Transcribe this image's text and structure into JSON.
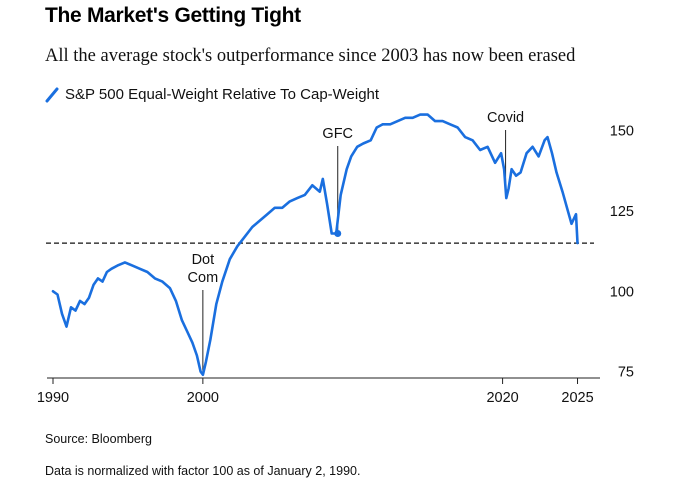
{
  "chart_data": {
    "type": "line",
    "title": "The Market's Getting Tight",
    "subtitle": "All the average stock's outperformance since 2003 has now been erased",
    "series": [
      {
        "name": "S&P 500 Equal-Weight Relative To Cap-Weight",
        "color": "#1a6fdf",
        "x": [
          1990.0,
          1990.3,
          1990.6,
          1990.9,
          1991.2,
          1991.5,
          1991.8,
          1992.1,
          1992.4,
          1992.7,
          1993.0,
          1993.3,
          1993.6,
          1993.9,
          1994.3,
          1994.8,
          1995.3,
          1995.8,
          1996.3,
          1996.8,
          1997.3,
          1997.8,
          1998.2,
          1998.6,
          1999.0,
          1999.3,
          1999.6,
          1999.85,
          2000.0,
          2000.2,
          2000.5,
          2000.9,
          2001.3,
          2001.8,
          2002.3,
          2002.8,
          2003.3,
          2003.8,
          2004.3,
          2004.8,
          2005.3,
          2005.8,
          2006.3,
          2006.8,
          2007.3,
          2007.8,
          2008.0,
          2008.3,
          2008.6,
          2008.9,
          2009.2,
          2009.6,
          2009.9,
          2010.3,
          2010.7,
          2011.2,
          2011.6,
          2012.0,
          2012.5,
          2013.0,
          2013.5,
          2014.0,
          2014.5,
          2015.0,
          2015.5,
          2016.0,
          2016.5,
          2017.0,
          2017.5,
          2018.0,
          2018.5,
          2019.0,
          2019.5,
          2019.9,
          2020.1,
          2020.25,
          2020.4,
          2020.6,
          2020.9,
          2021.2,
          2021.6,
          2022.0,
          2022.4,
          2022.8,
          2023.0,
          2023.3,
          2023.6,
          2024.0,
          2024.3,
          2024.6,
          2024.9,
          2025.0
        ],
        "y": [
          100,
          99,
          93,
          89,
          95,
          94,
          97,
          96,
          98,
          102,
          104,
          103,
          106,
          107,
          108,
          109,
          108,
          107,
          106,
          104,
          103,
          101,
          97,
          91,
          87,
          84,
          80,
          75,
          74,
          78,
          85,
          96,
          103,
          110,
          114,
          117,
          120,
          122,
          124,
          126,
          126,
          128,
          129,
          130,
          133,
          131,
          135,
          127,
          118,
          118,
          130,
          138,
          142,
          145,
          146,
          147,
          151,
          152,
          152,
          153,
          154,
          154,
          155,
          155,
          153,
          153,
          152,
          151,
          148,
          147,
          144,
          145,
          140,
          143,
          138,
          129,
          132,
          138,
          136,
          137,
          143,
          145,
          142,
          147,
          148,
          143,
          137,
          131,
          126,
          121,
          124,
          115
        ]
      }
    ],
    "xticks": [
      1990,
      2000,
      2020,
      2025
    ],
    "yticks": [
      75,
      100,
      125,
      150
    ],
    "xlim": [
      1989.8,
      2026.5
    ],
    "ylim": [
      73,
      158
    ],
    "reference_line": {
      "y": 115,
      "style": "dashed"
    },
    "annotations": [
      {
        "lines": [
          "Dot",
          "Com"
        ],
        "x": 2000.0,
        "y": 74
      },
      {
        "lines": [
          "GFC"
        ],
        "x": 2009.0,
        "y": 118
      },
      {
        "lines": [
          "Covid"
        ],
        "x": 2020.2,
        "y": 129
      }
    ],
    "marker": {
      "x": 2009.0,
      "y": 118
    },
    "grid": false,
    "legend_position": "top-left"
  },
  "footer": {
    "source": "Source: Bloomberg",
    "note": "Data is normalized with factor 100 as of January 2, 1990."
  }
}
